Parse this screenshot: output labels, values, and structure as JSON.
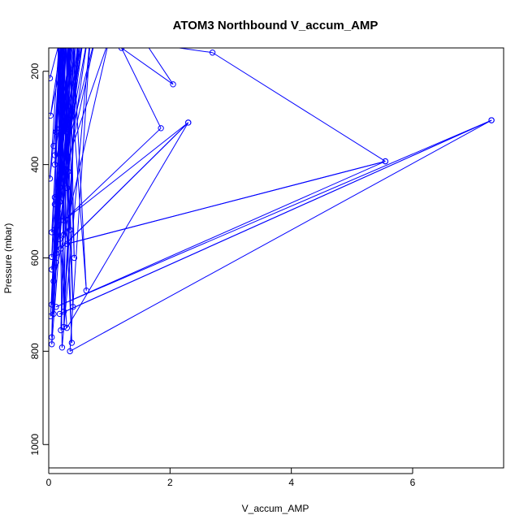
{
  "chart_data": {
    "type": "line",
    "title": "ATOM3 Northbound V_accum_AMP",
    "xlabel": "V_accum_AMP",
    "ylabel": "Pressure (mbar)",
    "xlim": [
      0,
      7.5
    ],
    "ylim": [
      1050,
      150
    ],
    "y_reversed": true,
    "x_ticks": [
      0,
      2,
      4,
      6
    ],
    "y_ticks": [
      200,
      400,
      600,
      800,
      1000
    ],
    "grid": false,
    "legend": "none",
    "colors": {
      "series": "#0000ff"
    },
    "series": [
      {
        "points": [
          {
            "x": 0.02,
            "y": 215
          },
          {
            "x": 0.25,
            "y": 100
          },
          {
            "x": 0.03,
            "y": 295
          },
          {
            "x": 0.3,
            "y": 120
          },
          {
            "x": 0.08,
            "y": 360
          },
          {
            "x": 0.2,
            "y": 140
          },
          {
            "x": 0.1,
            "y": 380
          },
          {
            "x": 0.4,
            "y": 120
          },
          {
            "x": 0.2,
            "y": 320
          },
          {
            "x": 0.15,
            "y": 130
          },
          {
            "x": 0.3,
            "y": 330
          },
          {
            "x": 0.35,
            "y": 110
          },
          {
            "x": 0.32,
            "y": 415
          },
          {
            "x": 0.18,
            "y": 120
          },
          {
            "x": 0.02,
            "y": 430
          },
          {
            "x": 0.28,
            "y": 100
          },
          {
            "x": 0.18,
            "y": 480
          },
          {
            "x": 0.45,
            "y": 130
          },
          {
            "x": 0.1,
            "y": 485
          },
          {
            "x": 0.3,
            "y": 110
          },
          {
            "x": 0.15,
            "y": 530
          },
          {
            "x": 0.6,
            "y": 100
          },
          {
            "x": 0.05,
            "y": 545
          },
          {
            "x": 0.22,
            "y": 130
          },
          {
            "x": 0.25,
            "y": 550
          },
          {
            "x": 0.38,
            "y": 110
          },
          {
            "x": 0.1,
            "y": 540
          },
          {
            "x": 0.5,
            "y": 120
          },
          {
            "x": 0.18,
            "y": 560
          },
          {
            "x": 0.2,
            "y": 100
          },
          {
            "x": 0.05,
            "y": 598
          },
          {
            "x": 0.35,
            "y": 120
          },
          {
            "x": 0.42,
            "y": 600
          },
          {
            "x": 0.28,
            "y": 110
          },
          {
            "x": 0.12,
            "y": 610
          },
          {
            "x": 0.55,
            "y": 100
          },
          {
            "x": 0.05,
            "y": 625
          },
          {
            "x": 0.4,
            "y": 130
          },
          {
            "x": 0.62,
            "y": 670
          },
          {
            "x": 0.3,
            "y": 110
          },
          {
            "x": 0.05,
            "y": 700
          },
          {
            "x": 0.25,
            "y": 120
          },
          {
            "x": 0.03,
            "y": 725
          },
          {
            "x": 0.35,
            "y": 100
          },
          {
            "x": 0.08,
            "y": 720
          },
          {
            "x": 0.28,
            "y": 130
          },
          {
            "x": 0.4,
            "y": 705
          },
          {
            "x": 0.2,
            "y": 120
          },
          {
            "x": 0.25,
            "y": 715
          },
          {
            "x": 0.5,
            "y": 110
          },
          {
            "x": 0.25,
            "y": 748
          },
          {
            "x": 0.32,
            "y": 100
          },
          {
            "x": 0.2,
            "y": 755
          },
          {
            "x": 0.45,
            "y": 120
          },
          {
            "x": 0.05,
            "y": 785
          },
          {
            "x": 0.22,
            "y": 110
          },
          {
            "x": 0.38,
            "y": 782
          },
          {
            "x": 0.15,
            "y": 120
          },
          {
            "x": 0.22,
            "y": 792
          },
          {
            "x": 0.7,
            "y": 100
          },
          {
            "x": 0.35,
            "y": 800
          },
          {
            "x": 7.3,
            "y": 305
          },
          {
            "x": 0.18,
            "y": 720
          },
          {
            "x": 7.3,
            "y": 305
          },
          {
            "x": 0.12,
            "y": 705
          },
          {
            "x": 5.55,
            "y": 393
          },
          {
            "x": 0.3,
            "y": 570
          },
          {
            "x": 5.55,
            "y": 393
          },
          {
            "x": 2.7,
            "y": 160
          },
          {
            "x": 1.6,
            "y": 140
          },
          {
            "x": 2.05,
            "y": 228
          },
          {
            "x": 1.2,
            "y": 150
          },
          {
            "x": 1.85,
            "y": 322
          },
          {
            "x": 0.25,
            "y": 520
          },
          {
            "x": 2.3,
            "y": 310
          },
          {
            "x": 0.2,
            "y": 580
          },
          {
            "x": 2.3,
            "y": 310
          },
          {
            "x": 0.3,
            "y": 750
          },
          {
            "x": 0.15,
            "y": 500
          },
          {
            "x": 0.8,
            "y": 110
          },
          {
            "x": 0.1,
            "y": 470
          },
          {
            "x": 1.0,
            "y": 130
          },
          {
            "x": 0.08,
            "y": 650
          },
          {
            "x": 0.35,
            "y": 130
          },
          {
            "x": 0.12,
            "y": 590
          },
          {
            "x": 0.65,
            "y": 120
          },
          {
            "x": 0.2,
            "y": 440
          },
          {
            "x": 0.55,
            "y": 140
          },
          {
            "x": 0.1,
            "y": 400
          },
          {
            "x": 0.22,
            "y": 100
          },
          {
            "x": 0.3,
            "y": 450
          },
          {
            "x": 0.42,
            "y": 125
          },
          {
            "x": 0.15,
            "y": 520
          },
          {
            "x": 0.26,
            "y": 110
          },
          {
            "x": 0.05,
            "y": 770
          },
          {
            "x": 0.18,
            "y": 100
          },
          {
            "x": 0.12,
            "y": 330
          },
          {
            "x": 0.24,
            "y": 105
          },
          {
            "x": 0.35,
            "y": 540
          },
          {
            "x": 0.48,
            "y": 100
          }
        ]
      }
    ]
  }
}
